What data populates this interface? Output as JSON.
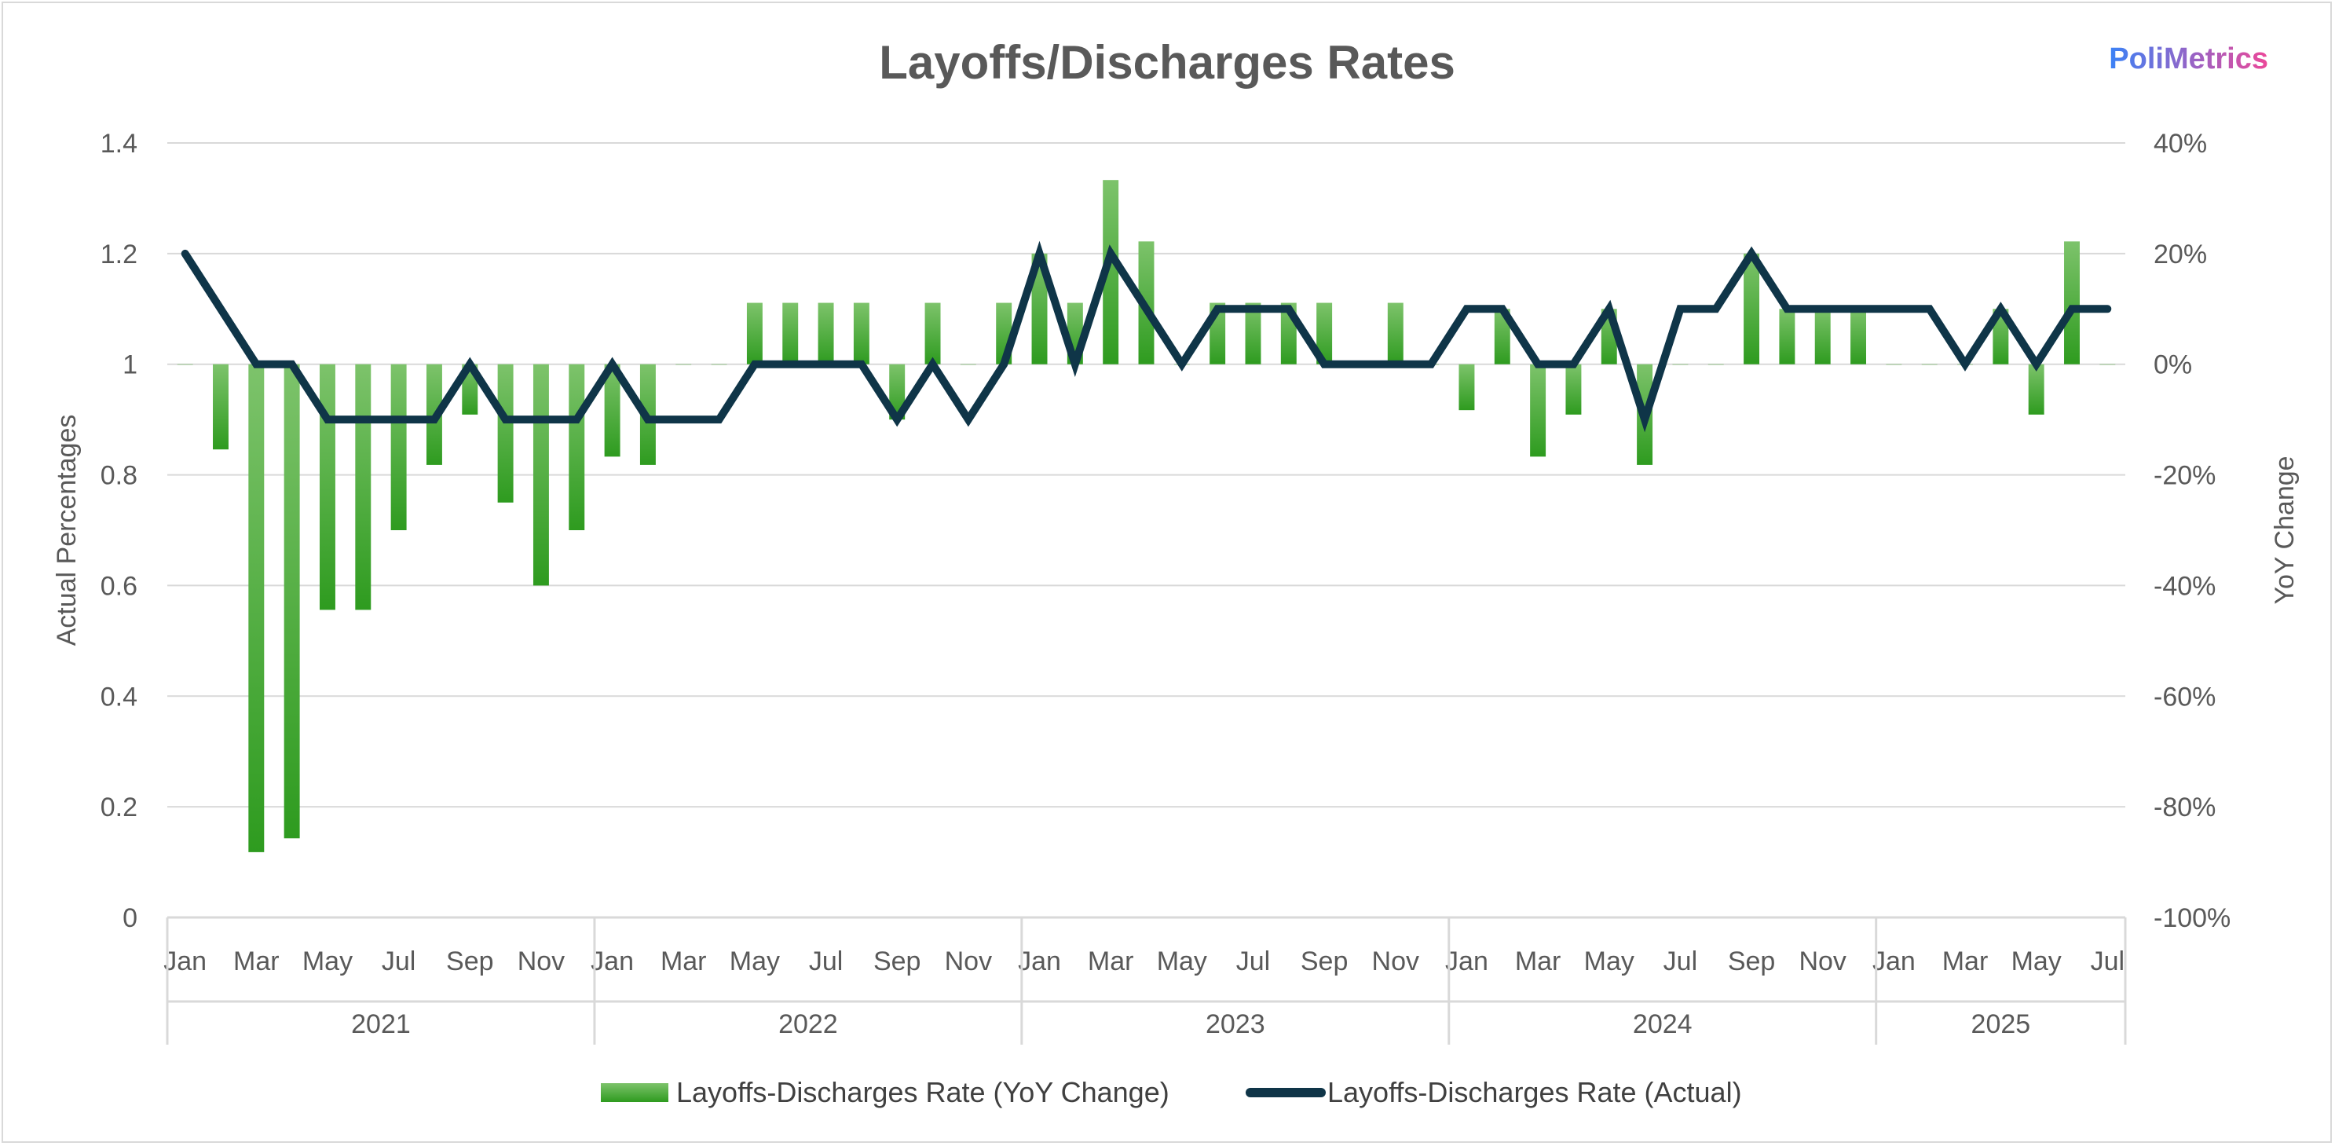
{
  "brand": {
    "name": "PoliMetrics",
    "color_start": "#3b82f6",
    "color_end": "#ec4899"
  },
  "colors": {
    "bar_top": "#7dc36b",
    "bar_bottom": "#2e9b1f",
    "line": "#0f3548",
    "grid": "#d9d9d9",
    "text": "#595959"
  },
  "chart_data": {
    "type": "bar+line",
    "title": "Layoffs/Discharges Rates",
    "ylabel_left": "Actual Percentages",
    "ylabel_right": "YoY Change",
    "left_axis": {
      "min": 0,
      "max": 1.4,
      "ticks": [
        "0",
        "0.2",
        "0.4",
        "0.6",
        "0.8",
        "1",
        "1.2",
        "1.4"
      ]
    },
    "right_axis": {
      "min": -100,
      "max": 40,
      "ticks": [
        "-100%",
        "-80%",
        "-60%",
        "-40%",
        "-20%",
        "0%",
        "20%",
        "40%"
      ]
    },
    "month_labels": [
      "Jan",
      "",
      "Mar",
      "",
      "May",
      "",
      "Jul",
      "",
      "Sep",
      "",
      "Nov",
      "",
      "Jan",
      "",
      "Mar",
      "",
      "May",
      "",
      "Jul",
      "",
      "Sep",
      "",
      "Nov",
      "",
      "Jan",
      "",
      "Mar",
      "",
      "May",
      "",
      "Jul",
      "",
      "Sep",
      "",
      "Nov",
      "",
      "Jan",
      "",
      "Mar",
      "",
      "May",
      "",
      "Jul",
      "",
      "Sep",
      "",
      "Nov",
      "",
      "Jan",
      "",
      "Mar",
      "",
      "May",
      "",
      "Jul"
    ],
    "years": [
      {
        "label": "2021",
        "start": 0,
        "count": 12
      },
      {
        "label": "2022",
        "start": 12,
        "count": 12
      },
      {
        "label": "2023",
        "start": 24,
        "count": 12
      },
      {
        "label": "2024",
        "start": 36,
        "count": 12
      },
      {
        "label": "2025",
        "start": 48,
        "count": 7
      }
    ],
    "series": [
      {
        "name": "Layoffs-Discharges Rate (YoY Change)",
        "type": "bar",
        "axis": "right",
        "values": [
          0,
          -15.4,
          -88.2,
          -85.7,
          -44.4,
          -44.4,
          -30,
          -18.2,
          -9.1,
          -25,
          -40,
          -30,
          -16.7,
          -18.2,
          0,
          0,
          11.1,
          11.1,
          11.1,
          11.1,
          -10,
          11.1,
          0,
          11.1,
          20,
          11.1,
          33.3,
          22.2,
          0,
          11.1,
          11.1,
          11.1,
          11.1,
          0,
          11.1,
          0,
          -8.3,
          10,
          -16.7,
          -9.1,
          10,
          -18.2,
          0,
          0,
          20,
          10,
          10,
          10,
          0,
          0,
          0,
          10,
          -9.1,
          22.2,
          0
        ]
      },
      {
        "name": "Layoffs-Discharges Rate (Actual)",
        "type": "line",
        "axis": "left",
        "values": [
          1.2,
          1.1,
          1.0,
          1.0,
          0.9,
          0.9,
          0.9,
          0.9,
          1.0,
          0.9,
          0.9,
          0.9,
          1.0,
          0.9,
          0.9,
          0.9,
          1.0,
          1.0,
          1.0,
          1.0,
          0.9,
          1.0,
          0.9,
          1.0,
          1.2,
          1.0,
          1.2,
          1.1,
          1.0,
          1.1,
          1.1,
          1.1,
          1.0,
          1.0,
          1.0,
          1.0,
          1.1,
          1.1,
          1.0,
          1.0,
          1.1,
          0.9,
          1.1,
          1.1,
          1.2,
          1.1,
          1.1,
          1.1,
          1.1,
          1.1,
          1.0,
          1.1,
          1.0,
          1.1,
          1.1
        ]
      }
    ],
    "legend": [
      "Layoffs-Discharges Rate (YoY Change)",
      "Layoffs-Discharges Rate (Actual)"
    ]
  }
}
